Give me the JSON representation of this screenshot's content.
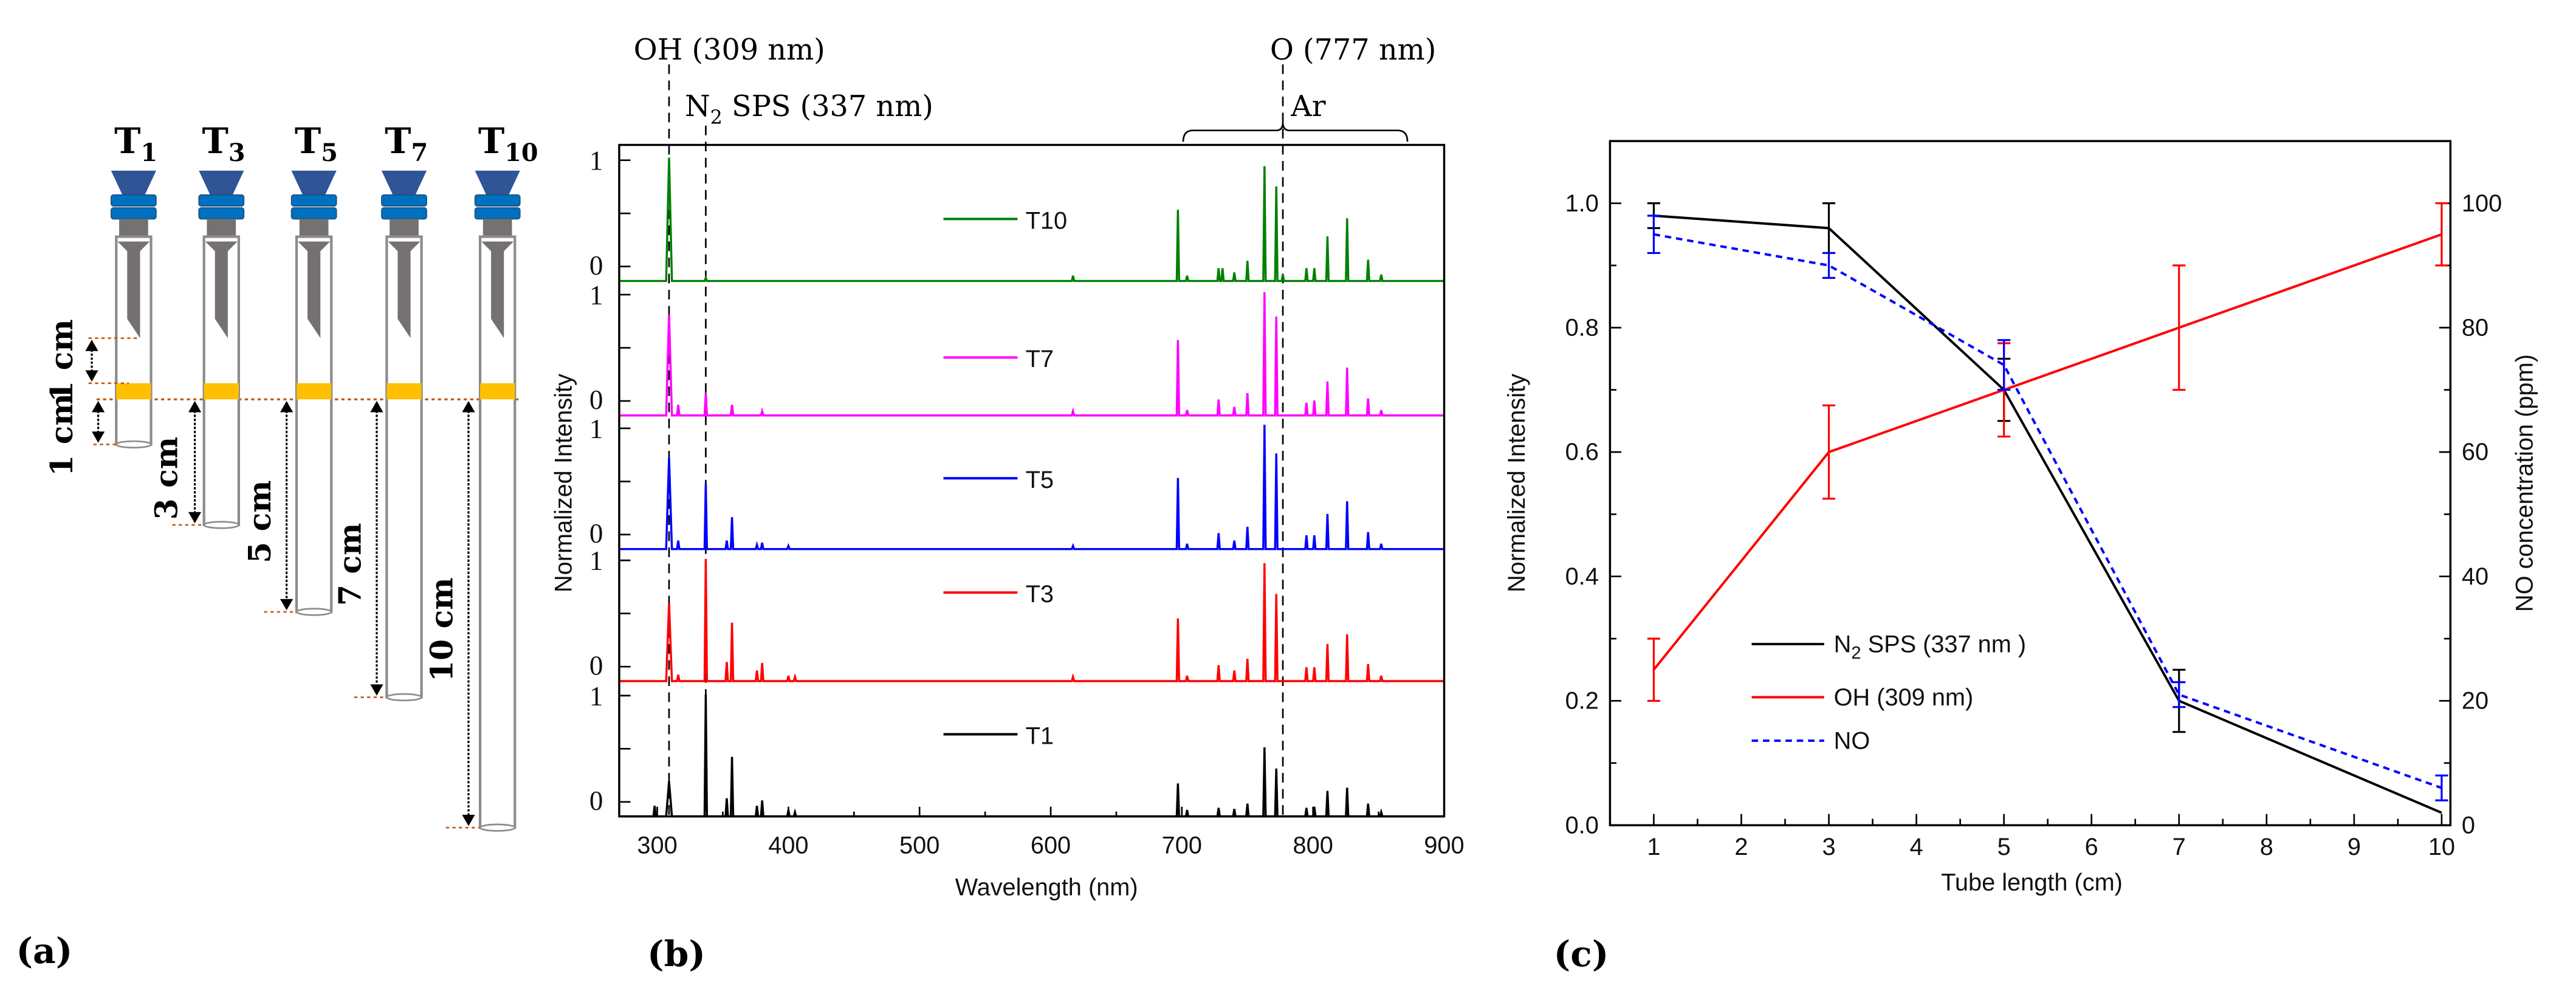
{
  "panel_labels": {
    "a": "(a)",
    "b": "(b)",
    "c": "(c)"
  },
  "diagram": {
    "tubes": [
      {
        "main": "T",
        "sub": "1",
        "length_cm": 1
      },
      {
        "main": "T",
        "sub": "3",
        "length_cm": 3
      },
      {
        "main": "T",
        "sub": "5",
        "length_cm": 5
      },
      {
        "main": "T",
        "sub": "7",
        "length_cm": 7
      },
      {
        "main": "T",
        "sub": "10",
        "length_cm": 10
      }
    ],
    "dimension_labels": {
      "upper_gap": "1 cm",
      "t1": "1 cm",
      "t3": "3 cm",
      "t5": "5 cm",
      "t7": "7 cm",
      "t10": "10 cm"
    },
    "colors": {
      "funnel": "#2f5597",
      "ring": "#0070c0",
      "metal": "#767171",
      "band": "#ffc000",
      "guide": "#c55a11"
    }
  },
  "chart_data": [
    {
      "type": "line",
      "title": "",
      "xlabel": "Wavelength (nm)",
      "ylabel": "Normalized Intensity",
      "xlim": [
        271,
        900
      ],
      "xticks": [
        "300",
        "400",
        "500",
        "600",
        "700",
        "800",
        "900"
      ],
      "ytick_labels": [
        "0",
        "1"
      ],
      "annotations": {
        "oh": "OH (309 nm)",
        "n2_main": "N",
        "n2_sub": "2",
        "n2_rest": " SPS (337 nm)",
        "o": "O (777 nm)",
        "ar": "Ar"
      },
      "reference_lines_nm": [
        309,
        337,
        777
      ],
      "ar_range_nm": [
        701,
        872
      ],
      "series": [
        {
          "name": "T10",
          "color": "#008000",
          "peaks": [
            [
              309,
              1.16
            ],
            [
              337,
              0.03
            ],
            [
              617,
              0.05
            ],
            [
              697,
              0.67
            ],
            [
              704,
              0.05
            ],
            [
              728,
              0.12
            ],
            [
              731,
              0.12
            ],
            [
              740,
              0.08
            ],
            [
              750,
              0.19
            ],
            [
              763,
              1.08
            ],
            [
              772,
              0.89
            ],
            [
              777,
              0.06
            ],
            [
              795,
              0.12
            ],
            [
              801,
              0.12
            ],
            [
              811,
              0.42
            ],
            [
              826,
              0.59
            ],
            [
              842,
              0.2
            ],
            [
              852,
              0.06
            ]
          ]
        },
        {
          "name": "T7",
          "color": "#ff00ff",
          "peaks": [
            [
              309,
              0.95
            ],
            [
              316,
              0.1
            ],
            [
              337,
              0.21
            ],
            [
              357,
              0.1
            ],
            [
              380,
              0.04
            ],
            [
              617,
              0.04
            ],
            [
              697,
              0.71
            ],
            [
              704,
              0.05
            ],
            [
              728,
              0.15
            ],
            [
              740,
              0.08
            ],
            [
              750,
              0.21
            ],
            [
              763,
              1.16
            ],
            [
              772,
              0.93
            ],
            [
              795,
              0.12
            ],
            [
              801,
              0.14
            ],
            [
              811,
              0.32
            ],
            [
              826,
              0.45
            ],
            [
              842,
              0.16
            ],
            [
              852,
              0.05
            ]
          ]
        },
        {
          "name": "T5",
          "color": "#0000ff",
          "peaks": [
            [
              309,
              0.86
            ],
            [
              316,
              0.08
            ],
            [
              337,
              0.62
            ],
            [
              353,
              0.08
            ],
            [
              357,
              0.3
            ],
            [
              376,
              0.04
            ],
            [
              380,
              0.06
            ],
            [
              400,
              0.03
            ],
            [
              617,
              0.03
            ],
            [
              697,
              0.67
            ],
            [
              704,
              0.05
            ],
            [
              728,
              0.15
            ],
            [
              740,
              0.08
            ],
            [
              750,
              0.21
            ],
            [
              763,
              1.17
            ],
            [
              772,
              0.9
            ],
            [
              795,
              0.13
            ],
            [
              801,
              0.13
            ],
            [
              811,
              0.33
            ],
            [
              826,
              0.45
            ],
            [
              842,
              0.16
            ],
            [
              852,
              0.05
            ]
          ]
        },
        {
          "name": "T3",
          "color": "#ff0000",
          "peaks": [
            [
              309,
              0.73
            ],
            [
              316,
              0.06
            ],
            [
              337,
              1.15
            ],
            [
              353,
              0.18
            ],
            [
              357,
              0.55
            ],
            [
              376,
              0.1
            ],
            [
              380,
              0.17
            ],
            [
              400,
              0.05
            ],
            [
              405,
              0.04
            ],
            [
              617,
              0.04
            ],
            [
              697,
              0.59
            ],
            [
              704,
              0.05
            ],
            [
              728,
              0.15
            ],
            [
              740,
              0.1
            ],
            [
              750,
              0.21
            ],
            [
              763,
              1.11
            ],
            [
              772,
              0.82
            ],
            [
              795,
              0.13
            ],
            [
              801,
              0.13
            ],
            [
              811,
              0.35
            ],
            [
              826,
              0.44
            ],
            [
              842,
              0.16
            ],
            [
              852,
              0.05
            ]
          ]
        },
        {
          "name": "T1",
          "color": "#000000",
          "peaks": [
            [
              298,
              0.1
            ],
            [
              309,
              0.33
            ],
            [
              337,
              1.15
            ],
            [
              353,
              0.17
            ],
            [
              357,
              0.56
            ],
            [
              376,
              0.1
            ],
            [
              380,
              0.15
            ],
            [
              400,
              0.06
            ],
            [
              405,
              0.04
            ],
            [
              697,
              0.31
            ],
            [
              704,
              0.06
            ],
            [
              728,
              0.08
            ],
            [
              740,
              0.07
            ],
            [
              750,
              0.12
            ],
            [
              763,
              0.65
            ],
            [
              772,
              0.45
            ],
            [
              795,
              0.08
            ],
            [
              801,
              0.09
            ],
            [
              811,
              0.24
            ],
            [
              826,
              0.27
            ],
            [
              842,
              0.12
            ],
            [
              852,
              0.04
            ]
          ]
        }
      ]
    },
    {
      "type": "line",
      "title": "",
      "xlabel": "Tube length (cm)",
      "ylabel": "Normalized Intensity",
      "y2label": "NO concentration (ppm)",
      "xlim": [
        0.5,
        10.1
      ],
      "ylim": [
        0,
        1.1
      ],
      "y2lim": [
        0,
        110
      ],
      "xticks": [
        "1",
        "2",
        "3",
        "4",
        "5",
        "6",
        "7",
        "8",
        "9",
        "10"
      ],
      "yticks": [
        "0.0",
        "0.2",
        "0.4",
        "0.6",
        "0.8",
        "1.0"
      ],
      "y2ticks": [
        "0",
        "20",
        "40",
        "60",
        "80",
        "100"
      ],
      "legend_position": "bottom-left",
      "y2_color": "#0000ff",
      "x": [
        1,
        3,
        5,
        7,
        10
      ],
      "series": [
        {
          "name_main": "N",
          "name_sub": "2",
          "name_rest": " SPS (337 nm )",
          "axis": "left",
          "color": "#000000",
          "dash": false,
          "values": [
            0.98,
            0.96,
            0.7,
            0.2,
            0.02
          ],
          "errors": [
            0.02,
            0.04,
            0.05,
            0.05,
            0.0
          ]
        },
        {
          "name_main": "OH (309 nm)",
          "name_sub": "",
          "name_rest": "",
          "axis": "left",
          "color": "#ff0000",
          "dash": false,
          "values": [
            0.25,
            0.6,
            0.7,
            0.8,
            0.95
          ],
          "errors": [
            0.05,
            0.075,
            0.075,
            0.1,
            0.05
          ]
        },
        {
          "name_main": "NO",
          "name_sub": "",
          "name_rest": "",
          "axis": "right",
          "color": "#0000ff",
          "dash": true,
          "values": [
            95,
            90,
            74,
            21,
            6
          ],
          "errors": [
            3,
            2,
            4,
            2,
            2
          ]
        }
      ]
    }
  ]
}
